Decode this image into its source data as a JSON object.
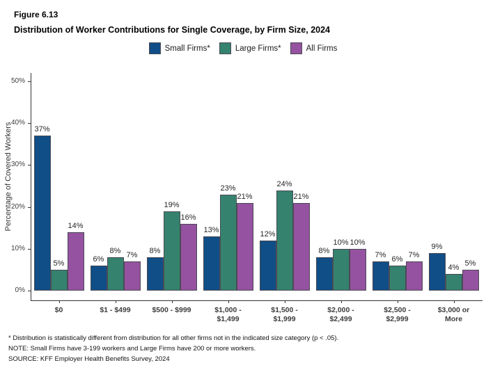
{
  "figure": {
    "label": "Figure 6.13",
    "title": "Distribution of Worker Contributions for Single Coverage, by Firm Size, 2024"
  },
  "legend": {
    "items": [
      {
        "label": "Small Firms*",
        "color": "#104E87"
      },
      {
        "label": "Large Firms*",
        "color": "#35826F"
      },
      {
        "label": "All Firms",
        "color": "#9552A0"
      }
    ]
  },
  "chart_data": {
    "type": "bar",
    "title": "Distribution of Worker Contributions for Single Coverage, by Firm Size, 2024",
    "categories": [
      "$0",
      "$1 - $499",
      "$500 - $999",
      "$1,000 -\n$1,499",
      "$1,500 -\n$1,999",
      "$2,000 -\n$2,499",
      "$2,500 -\n$2,999",
      "$3,000 or\nMore"
    ],
    "series": [
      {
        "name": "Small Firms*",
        "color": "#104E87",
        "values": [
          37,
          6,
          8,
          13,
          12,
          8,
          7,
          9
        ]
      },
      {
        "name": "Large Firms*",
        "color": "#35826F",
        "values": [
          5,
          8,
          19,
          23,
          24,
          10,
          6,
          4
        ]
      },
      {
        "name": "All Firms",
        "color": "#9552A0",
        "values": [
          14,
          7,
          16,
          21,
          21,
          10,
          7,
          5
        ]
      }
    ],
    "xlabel": "",
    "ylabel": "Percentage of Covered Workers",
    "y_ticks": [
      0,
      10,
      20,
      30,
      40,
      50
    ],
    "y_tick_labels": [
      "0%",
      "10%",
      "20%",
      "30%",
      "40%",
      "50%"
    ],
    "ylim": [
      0,
      52
    ],
    "grid": false,
    "legend_position": "top",
    "value_suffix": "%"
  },
  "footnotes": {
    "lines": [
      "* Distribution is statistically different from distribution for all other firms not in the indicated size category (p < .05).",
      "NOTE: Small Firms have 3-199 workers and Large Firms have 200 or more workers.",
      "SOURCE: KFF Employer Health Benefits Survey, 2024"
    ]
  }
}
